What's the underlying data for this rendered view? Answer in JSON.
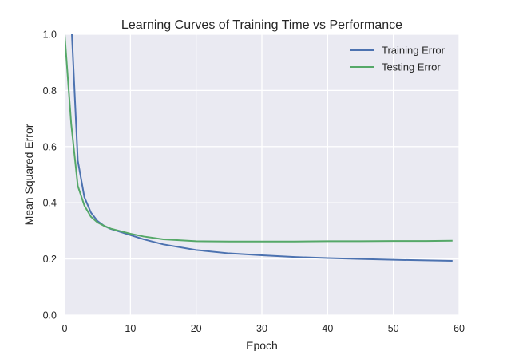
{
  "chart_data": {
    "type": "line",
    "title": "Learning Curves of Training Time vs Performance",
    "xlabel": "Epoch",
    "ylabel": "Mean Squared Error",
    "xlim": [
      0,
      60
    ],
    "ylim": [
      0,
      1.0
    ],
    "xticks": [
      0,
      10,
      20,
      30,
      40,
      50,
      60
    ],
    "yticks": [
      0.0,
      0.2,
      0.4,
      0.6,
      0.8,
      1.0
    ],
    "xtick_labels": [
      "0",
      "10",
      "20",
      "30",
      "40",
      "50",
      "60"
    ],
    "ytick_labels": [
      "0.0",
      "0.2",
      "0.4",
      "0.6",
      "0.8",
      "1.0"
    ],
    "grid": true,
    "legend_position": "top-right",
    "series": [
      {
        "name": "Training Error",
        "color": "#4c72b0",
        "x": [
          0,
          1,
          2,
          3,
          4,
          5,
          6,
          7,
          8,
          10,
          12,
          15,
          20,
          25,
          30,
          35,
          40,
          45,
          50,
          55,
          59
        ],
        "y": [
          2.0,
          1.05,
          0.55,
          0.42,
          0.365,
          0.335,
          0.318,
          0.307,
          0.3,
          0.285,
          0.27,
          0.252,
          0.232,
          0.22,
          0.213,
          0.207,
          0.203,
          0.2,
          0.197,
          0.195,
          0.193
        ]
      },
      {
        "name": "Testing Error",
        "color": "#55a868",
        "x": [
          0,
          1,
          2,
          3,
          4,
          5,
          6,
          7,
          8,
          10,
          12,
          15,
          20,
          25,
          30,
          35,
          40,
          45,
          50,
          55,
          59
        ],
        "y": [
          1.0,
          0.68,
          0.46,
          0.39,
          0.35,
          0.33,
          0.318,
          0.308,
          0.302,
          0.29,
          0.28,
          0.27,
          0.263,
          0.262,
          0.262,
          0.262,
          0.263,
          0.263,
          0.264,
          0.264,
          0.265
        ]
      }
    ]
  }
}
